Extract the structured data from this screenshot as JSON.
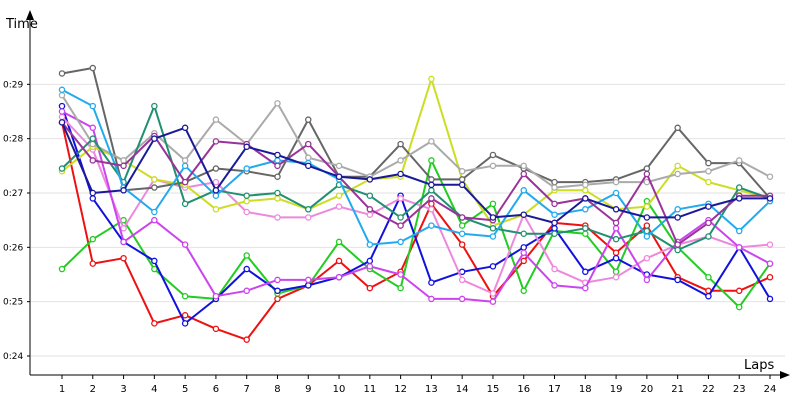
{
  "chart_data": {
    "type": "line",
    "ylabel": "Time",
    "xlabel": "Laps",
    "x": [
      1,
      2,
      3,
      4,
      5,
      6,
      7,
      8,
      9,
      10,
      11,
      12,
      13,
      14,
      15,
      16,
      17,
      18,
      19,
      20,
      21,
      22,
      23,
      24
    ],
    "xlim": [
      1,
      24
    ],
    "ylim": [
      23.65,
      30.0
    ],
    "yticks": [
      24,
      25,
      26,
      27,
      28,
      29
    ],
    "ytick_labels": [
      "0:24",
      "0:25",
      "0:26",
      "0:27",
      "0:28",
      "0:29"
    ],
    "grid": "horizontal",
    "legend": "none",
    "series": [
      {
        "color": "#ee1111",
        "values": [
          28.3,
          25.7,
          25.8,
          24.6,
          24.75,
          24.5,
          24.3,
          25.05,
          25.3,
          25.75,
          25.25,
          25.55,
          26.8,
          26.05,
          25.1,
          25.75,
          26.45,
          26.4,
          25.9,
          26.4,
          25.45,
          25.2,
          25.2,
          25.45
        ]
      },
      {
        "color": "#22cc22",
        "values": [
          25.6,
          26.15,
          26.5,
          25.6,
          25.1,
          25.05,
          25.85,
          25.15,
          25.3,
          26.1,
          25.6,
          25.25,
          27.6,
          26.4,
          26.8,
          25.2,
          26.3,
          26.25,
          25.55,
          26.85,
          26.0,
          25.45,
          24.9,
          25.7
        ]
      },
      {
        "color": "#1111dd",
        "values": [
          28.6,
          26.9,
          26.1,
          25.75,
          24.6,
          25.05,
          25.6,
          25.2,
          25.3,
          25.45,
          25.75,
          26.95,
          25.35,
          25.55,
          25.65,
          26.0,
          26.35,
          25.55,
          25.8,
          25.5,
          25.4,
          25.1,
          26.0,
          25.05
        ]
      },
      {
        "color": "#ee88dd",
        "values": [
          28.4,
          27.8,
          26.35,
          27.25,
          27.1,
          27.2,
          26.65,
          26.55,
          26.55,
          26.75,
          26.6,
          26.9,
          26.7,
          25.4,
          25.15,
          26.6,
          25.6,
          25.35,
          25.45,
          25.8,
          26.05,
          26.2,
          26.0,
          26.05
        ]
      },
      {
        "color": "#cc44ee",
        "values": [
          28.5,
          28.2,
          26.1,
          26.5,
          26.05,
          25.1,
          25.2,
          25.4,
          25.4,
          25.45,
          25.65,
          25.5,
          25.05,
          25.05,
          25.0,
          25.9,
          25.3,
          25.25,
          26.35,
          25.4,
          26.1,
          26.5,
          26.0,
          25.7
        ]
      },
      {
        "color": "#ccdd22",
        "values": [
          27.4,
          27.85,
          27.6,
          27.25,
          27.15,
          26.7,
          26.85,
          26.9,
          26.7,
          26.95,
          27.25,
          27.3,
          29.1,
          27.25,
          26.4,
          26.6,
          27.05,
          27.05,
          26.7,
          26.75,
          27.5,
          27.2,
          27.05,
          26.9
        ]
      },
      {
        "color": "#666666",
        "values": [
          29.2,
          29.3,
          27.05,
          27.1,
          27.2,
          27.45,
          27.4,
          27.3,
          28.35,
          27.3,
          27.3,
          27.9,
          27.25,
          27.25,
          27.7,
          27.45,
          27.2,
          27.2,
          27.25,
          27.45,
          28.2,
          27.55,
          27.55,
          26.9
        ]
      },
      {
        "color": "#aaaaaa",
        "values": [
          28.8,
          27.9,
          27.6,
          28.1,
          27.6,
          28.35,
          27.9,
          28.65,
          27.65,
          27.5,
          27.3,
          27.6,
          27.95,
          27.4,
          27.5,
          27.5,
          27.1,
          27.15,
          27.2,
          27.2,
          27.35,
          27.4,
          27.6,
          27.3
        ]
      },
      {
        "color": "#209070",
        "values": [
          27.45,
          28.0,
          27.2,
          28.6,
          26.8,
          27.05,
          26.95,
          27.0,
          26.7,
          27.15,
          26.95,
          26.55,
          27.05,
          26.55,
          26.35,
          26.25,
          26.25,
          26.35,
          26.15,
          26.3,
          25.95,
          26.2,
          27.1,
          26.9
        ]
      },
      {
        "color": "#22aaee",
        "values": [
          28.9,
          28.6,
          27.1,
          26.65,
          27.5,
          26.95,
          27.45,
          27.6,
          27.55,
          27.25,
          26.05,
          26.1,
          26.4,
          26.25,
          26.2,
          27.05,
          26.6,
          26.7,
          27.0,
          26.2,
          26.7,
          26.8,
          26.3,
          26.85
        ]
      },
      {
        "color": "#993399",
        "values": [
          28.3,
          27.6,
          27.5,
          28.05,
          27.2,
          27.95,
          27.9,
          27.5,
          27.9,
          27.3,
          26.7,
          26.4,
          26.9,
          26.55,
          26.5,
          27.35,
          26.8,
          26.9,
          26.45,
          27.35,
          26.05,
          26.45,
          26.95,
          26.95
        ]
      },
      {
        "color": "#1a1a99",
        "values": [
          28.3,
          27.0,
          27.05,
          28.0,
          28.2,
          27.05,
          27.85,
          27.7,
          27.5,
          27.3,
          27.25,
          27.35,
          27.15,
          27.15,
          26.55,
          26.6,
          26.45,
          26.9,
          26.7,
          26.55,
          26.55,
          26.75,
          26.9,
          26.9
        ]
      }
    ]
  }
}
